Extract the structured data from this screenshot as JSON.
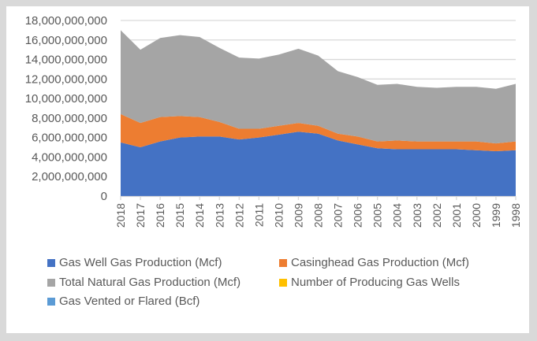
{
  "chart_data": {
    "type": "area",
    "stacked": true,
    "title": "",
    "xlabel": "",
    "ylabel": "",
    "ylim": [
      0,
      18000000000
    ],
    "y_ticks": [
      0,
      2000000000,
      4000000000,
      6000000000,
      8000000000,
      10000000000,
      12000000000,
      14000000000,
      16000000000,
      18000000000
    ],
    "y_tick_labels": [
      "0",
      "2,000,000,000",
      "4,000,000,000",
      "6,000,000,000",
      "8,000,000,000",
      "10,000,000,000",
      "12,000,000,000",
      "14,000,000,000",
      "16,000,000,000",
      "18,000,000,000"
    ],
    "grid": true,
    "legend_position": "bottom",
    "categories": [
      "2018",
      "2017",
      "2016",
      "2015",
      "2014",
      "2013",
      "2012",
      "2011",
      "2010",
      "2009",
      "2008",
      "2007",
      "2006",
      "2005",
      "2004",
      "2003",
      "2002",
      "2001",
      "2000",
      "1999",
      "1998"
    ],
    "series": [
      {
        "name": "Gas Well Gas Production (Mcf)",
        "color": "#4472C4",
        "values": [
          5500000000,
          5000000000,
          5600000000,
          6000000000,
          6100000000,
          6100000000,
          5800000000,
          6000000000,
          6300000000,
          6600000000,
          6400000000,
          5700000000,
          5300000000,
          4900000000,
          4800000000,
          4800000000,
          4800000000,
          4800000000,
          4700000000,
          4600000000,
          4700000000
        ]
      },
      {
        "name": "Casinghead Gas Production (Mcf)",
        "color": "#ED7D31",
        "values": [
          2900000000,
          2500000000,
          2500000000,
          2200000000,
          2000000000,
          1500000000,
          1100000000,
          900000000,
          900000000,
          900000000,
          800000000,
          700000000,
          800000000,
          700000000,
          900000000,
          800000000,
          800000000,
          800000000,
          900000000,
          800000000,
          900000000
        ]
      },
      {
        "name": "Total Natural Gas Production (Mcf)",
        "color": "#A5A5A5",
        "values": [
          8600000000,
          7500000000,
          8100000000,
          8300000000,
          8200000000,
          7600000000,
          7300000000,
          7200000000,
          7300000000,
          7600000000,
          7200000000,
          6400000000,
          6100000000,
          5800000000,
          5800000000,
          5600000000,
          5500000000,
          5600000000,
          5600000000,
          5600000000,
          5900000000
        ]
      },
      {
        "name": "Number of  Producing Gas Wells",
        "color": "#FFC000",
        "values": [
          0,
          0,
          0,
          0,
          0,
          0,
          0,
          0,
          0,
          0,
          0,
          0,
          0,
          0,
          0,
          0,
          0,
          0,
          0,
          0,
          0
        ]
      },
      {
        "name": "Gas Vented or Flared (Bcf)",
        "color": "#5B9BD5",
        "values": [
          0,
          0,
          0,
          0,
          0,
          0,
          0,
          0,
          0,
          0,
          0,
          0,
          0,
          0,
          0,
          0,
          0,
          0,
          0,
          0,
          0
        ]
      }
    ]
  }
}
